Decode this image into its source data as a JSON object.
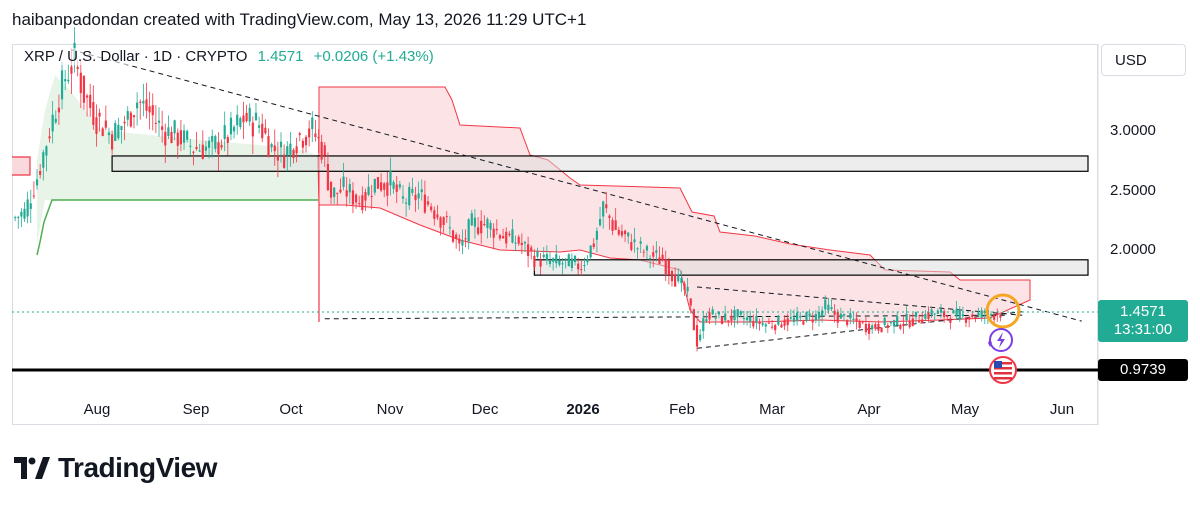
{
  "header": {
    "text": "haibanpadondan created with TradingView.com, May 13, 2026 11:29 UTC+1"
  },
  "legend": {
    "symbol": "XRP / U.S. Dollar · 1D · CRYPTO",
    "price": "1.4571",
    "change": "+0.0206 (+1.43%)"
  },
  "currency_button": "USD",
  "price_tag": {
    "price": "1.4571",
    "countdown": "13:31:00"
  },
  "support_tag": "0.9739",
  "brand": "TradingView",
  "colors": {
    "up": "#22ab94",
    "down": "#f23645",
    "cloud_bear": "#f7d6d8",
    "cloud_bull": "#e6f3e6",
    "baseline_green": "#4caf50",
    "support": "#000000",
    "orange_marker": "#f5a623",
    "purple_marker": "#7b3fe4"
  },
  "chart_data": {
    "type": "candlestick",
    "symbol": "XRP/USD",
    "interval": "1D",
    "x_tick_labels": [
      "Aug",
      "Sep",
      "Oct",
      "Nov",
      "Dec",
      "2026",
      "Feb",
      "Mar",
      "Apr",
      "May",
      "Jun"
    ],
    "y_tick_labels": [
      "3.0000",
      "2.5000",
      "2.0000"
    ],
    "y_range": [
      0.7,
      3.75
    ],
    "x_range": [
      "2025-07-01",
      "2026-06-10"
    ],
    "close_series": [
      {
        "date": "2025-07-01",
        "close": 2.25
      },
      {
        "date": "2025-07-05",
        "close": 2.3
      },
      {
        "date": "2025-07-09",
        "close": 2.6
      },
      {
        "date": "2025-07-12",
        "close": 2.9
      },
      {
        "date": "2025-07-15",
        "close": 3.2
      },
      {
        "date": "2025-07-18",
        "close": 3.45
      },
      {
        "date": "2025-07-21",
        "close": 3.6
      },
      {
        "date": "2025-07-24",
        "close": 3.3
      },
      {
        "date": "2025-07-28",
        "close": 3.1
      },
      {
        "date": "2025-08-02",
        "close": 2.95
      },
      {
        "date": "2025-08-07",
        "close": 3.1
      },
      {
        "date": "2025-08-10",
        "close": 3.25
      },
      {
        "date": "2025-08-14",
        "close": 3.15
      },
      {
        "date": "2025-08-18",
        "close": 3.0
      },
      {
        "date": "2025-08-23",
        "close": 2.95
      },
      {
        "date": "2025-08-28",
        "close": 2.85
      },
      {
        "date": "2025-09-03",
        "close": 2.85
      },
      {
        "date": "2025-09-08",
        "close": 2.95
      },
      {
        "date": "2025-09-13",
        "close": 3.1
      },
      {
        "date": "2025-09-18",
        "close": 3.05
      },
      {
        "date": "2025-09-22",
        "close": 2.85
      },
      {
        "date": "2025-09-26",
        "close": 2.8
      },
      {
        "date": "2025-10-01",
        "close": 2.95
      },
      {
        "date": "2025-10-05",
        "close": 3.0
      },
      {
        "date": "2025-10-08",
        "close": 2.85
      },
      {
        "date": "2025-10-11",
        "close": 2.45
      },
      {
        "date": "2025-10-15",
        "close": 2.5
      },
      {
        "date": "2025-10-20",
        "close": 2.4
      },
      {
        "date": "2025-10-25",
        "close": 2.55
      },
      {
        "date": "2025-10-30",
        "close": 2.55
      },
      {
        "date": "2025-11-03",
        "close": 2.4
      },
      {
        "date": "2025-11-08",
        "close": 2.45
      },
      {
        "date": "2025-11-12",
        "close": 2.35
      },
      {
        "date": "2025-11-17",
        "close": 2.2
      },
      {
        "date": "2025-11-21",
        "close": 2.0
      },
      {
        "date": "2025-11-25",
        "close": 2.2
      },
      {
        "date": "2025-11-30",
        "close": 2.2
      },
      {
        "date": "2025-12-05",
        "close": 2.1
      },
      {
        "date": "2025-12-10",
        "close": 2.05
      },
      {
        "date": "2025-12-15",
        "close": 1.92
      },
      {
        "date": "2025-12-20",
        "close": 1.88
      },
      {
        "date": "2025-12-25",
        "close": 1.87
      },
      {
        "date": "2025-12-30",
        "close": 1.85
      },
      {
        "date": "2026-01-03",
        "close": 2.05
      },
      {
        "date": "2026-01-06",
        "close": 2.35
      },
      {
        "date": "2026-01-10",
        "close": 2.15
      },
      {
        "date": "2026-01-15",
        "close": 2.05
      },
      {
        "date": "2026-01-20",
        "close": 1.95
      },
      {
        "date": "2026-01-25",
        "close": 1.9
      },
      {
        "date": "2026-01-29",
        "close": 1.75
      },
      {
        "date": "2026-02-02",
        "close": 1.6
      },
      {
        "date": "2026-02-05",
        "close": 1.2
      },
      {
        "date": "2026-02-08",
        "close": 1.45
      },
      {
        "date": "2026-02-13",
        "close": 1.4
      },
      {
        "date": "2026-02-18",
        "close": 1.42
      },
      {
        "date": "2026-02-23",
        "close": 1.38
      },
      {
        "date": "2026-02-28",
        "close": 1.35
      },
      {
        "date": "2026-03-05",
        "close": 1.38
      },
      {
        "date": "2026-03-10",
        "close": 1.4
      },
      {
        "date": "2026-03-15",
        "close": 1.42
      },
      {
        "date": "2026-03-18",
        "close": 1.5
      },
      {
        "date": "2026-03-22",
        "close": 1.42
      },
      {
        "date": "2026-03-27",
        "close": 1.38
      },
      {
        "date": "2026-04-01",
        "close": 1.33
      },
      {
        "date": "2026-04-06",
        "close": 1.35
      },
      {
        "date": "2026-04-11",
        "close": 1.37
      },
      {
        "date": "2026-04-16",
        "close": 1.4
      },
      {
        "date": "2026-04-21",
        "close": 1.45
      },
      {
        "date": "2026-04-26",
        "close": 1.43
      },
      {
        "date": "2026-05-01",
        "close": 1.42
      },
      {
        "date": "2026-05-06",
        "close": 1.43
      },
      {
        "date": "2026-05-10",
        "close": 1.44
      },
      {
        "date": "2026-05-13",
        "close": 1.4571
      }
    ],
    "current_price": 1.4571,
    "support_line": 0.9739,
    "zones": [
      {
        "from_date": "2025-08-02",
        "to_date": "2026-06-10",
        "low": 2.65,
        "high": 2.78
      },
      {
        "from_date": "2025-12-15",
        "to_date": "2026-06-10",
        "low": 1.77,
        "high": 1.9
      }
    ],
    "trendlines": [
      {
        "from": {
          "date": "2025-07-20",
          "value": 3.68
        },
        "to": {
          "date": "2026-06-08",
          "value": 1.38
        }
      },
      {
        "from": {
          "date": "2025-10-09",
          "value": 1.4
        },
        "to": {
          "date": "2026-05-15",
          "value": 1.43
        }
      },
      {
        "from": {
          "date": "2026-02-05",
          "value": 1.67
        },
        "to": {
          "date": "2026-05-20",
          "value": 1.43
        }
      },
      {
        "from": {
          "date": "2026-02-05",
          "value": 1.15
        },
        "to": {
          "date": "2026-05-20",
          "value": 1.46
        }
      }
    ]
  }
}
